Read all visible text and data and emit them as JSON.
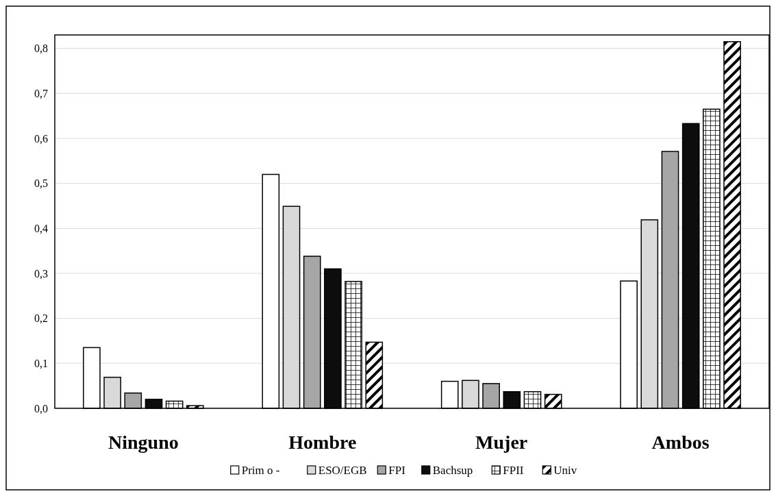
{
  "chart_data": {
    "type": "bar",
    "categories": [
      "Ninguno",
      "Hombre",
      "Mujer",
      "Ambos"
    ],
    "series": [
      {
        "name": "Prim o -",
        "color": "#ffffff",
        "values": [
          0.135,
          0.52,
          0.06,
          0.283
        ]
      },
      {
        "name": "ESO/EGB",
        "color": "#d9d9d9",
        "values": [
          0.069,
          0.449,
          0.062,
          0.419
        ]
      },
      {
        "name": "FPI",
        "color": "#a6a6a6",
        "values": [
          0.034,
          0.338,
          0.055,
          0.571
        ]
      },
      {
        "name": "Bachsup",
        "color": "#0d0d0d",
        "values": [
          0.02,
          0.31,
          0.037,
          0.633
        ]
      },
      {
        "name": "FPII",
        "color": "#000000",
        "values": [
          0.016,
          0.282,
          0.037,
          0.665
        ]
      },
      {
        "name": "Univ",
        "color": "#000000",
        "values": [
          0.006,
          0.147,
          0.031,
          0.815
        ]
      }
    ],
    "ylim": [
      0,
      0.83
    ],
    "yticks": [
      {
        "value": 0,
        "label": "0,0"
      },
      {
        "value": 0.1,
        "label": "0,1"
      },
      {
        "value": 0.2,
        "label": "0,2"
      },
      {
        "value": 0.3,
        "label": "0,3"
      },
      {
        "value": 0.4,
        "label": "0,4"
      },
      {
        "value": 0.5,
        "label": "0,5"
      },
      {
        "value": 0.6,
        "label": "0,6"
      },
      {
        "value": 0.7,
        "label": "0,7"
      },
      {
        "value": 0.8,
        "label": "0,8"
      }
    ],
    "grid": "y",
    "legend": "bottom"
  }
}
